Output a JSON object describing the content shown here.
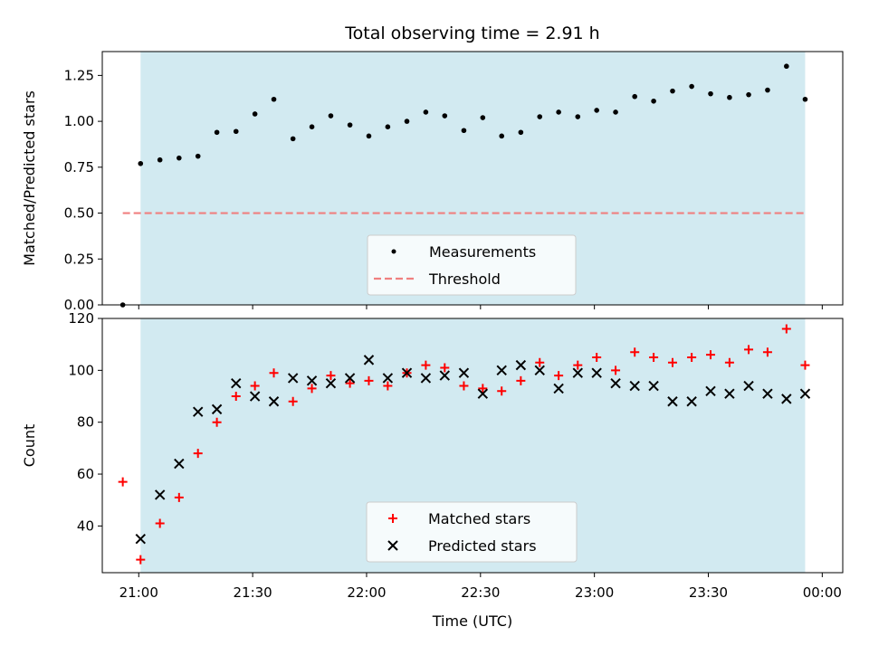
{
  "chart_data": [
    {
      "type": "scatter",
      "title": "Total observing time = 2.91 h",
      "xlabel": "",
      "ylabel": "Matched/Predicted stars",
      "ylim": [
        0,
        1.38
      ],
      "yticks": [
        "0.00",
        "0.25",
        "0.50",
        "0.75",
        "1.00",
        "1.25"
      ],
      "ytick_values": [
        0,
        0.25,
        0.5,
        0.75,
        1.0,
        1.25
      ],
      "xlim": [
        20.84,
        24.09
      ],
      "x_units": "hours UTC",
      "shaded_span": [
        21.008,
        23.925
      ],
      "shade_color": "#add8e6",
      "legend_position": "lower-center",
      "series": [
        {
          "name": "Measurements",
          "marker": "dot",
          "color": "#000000",
          "x": [
            20.93,
            21.008,
            21.093,
            21.177,
            21.26,
            21.343,
            21.427,
            21.51,
            21.593,
            21.677,
            21.76,
            21.843,
            21.927,
            22.01,
            22.093,
            22.177,
            22.26,
            22.343,
            22.427,
            22.51,
            22.593,
            22.677,
            22.76,
            22.843,
            22.927,
            23.01,
            23.093,
            23.177,
            23.26,
            23.343,
            23.427,
            23.51,
            23.593,
            23.677,
            23.76,
            23.843,
            23.925
          ],
          "y": [
            0.0,
            0.77,
            0.79,
            0.8,
            0.81,
            0.94,
            0.945,
            1.04,
            1.12,
            0.905,
            0.97,
            1.03,
            0.98,
            0.92,
            0.97,
            1.0,
            1.05,
            1.03,
            0.95,
            1.02,
            0.92,
            0.94,
            1.025,
            1.05,
            1.025,
            1.06,
            1.05,
            1.135,
            1.11,
            1.165,
            1.19,
            1.15,
            1.13,
            1.145,
            1.17,
            1.3,
            1.12
          ]
        },
        {
          "name": "Threshold",
          "marker": "dashed-line",
          "color": "#f08080",
          "x": [
            20.93,
            23.925
          ],
          "y": [
            0.5,
            0.5
          ]
        }
      ]
    },
    {
      "type": "scatter",
      "title": "",
      "xlabel": "Time (UTC)",
      "ylabel": "Count",
      "ylim": [
        22,
        120
      ],
      "yticks": [
        "40",
        "60",
        "80",
        "100",
        "120"
      ],
      "ytick_values": [
        40,
        60,
        80,
        100,
        120
      ],
      "xlim": [
        20.84,
        24.09
      ],
      "x_units": "hours UTC",
      "xticks": [
        "21:00",
        "21:30",
        "22:00",
        "22:30",
        "23:00",
        "23:30",
        "00:00"
      ],
      "xtick_values": [
        21.0,
        21.5,
        22.0,
        22.5,
        23.0,
        23.5,
        24.0
      ],
      "shaded_span": [
        21.008,
        23.925
      ],
      "shade_color": "#add8e6",
      "legend_position": "lower-center",
      "series": [
        {
          "name": "Matched stars",
          "marker": "plus",
          "color": "#ff0000",
          "x": [
            20.93,
            21.008,
            21.093,
            21.177,
            21.26,
            21.343,
            21.427,
            21.51,
            21.593,
            21.677,
            21.76,
            21.843,
            21.927,
            22.01,
            22.093,
            22.177,
            22.26,
            22.343,
            22.427,
            22.51,
            22.593,
            22.677,
            22.76,
            22.843,
            22.927,
            23.01,
            23.093,
            23.177,
            23.26,
            23.343,
            23.427,
            23.51,
            23.593,
            23.677,
            23.76,
            23.843,
            23.925
          ],
          "y": [
            57,
            27,
            41,
            51,
            68,
            80,
            90,
            94,
            99,
            88,
            93,
            98,
            95,
            96,
            94,
            99,
            102,
            101,
            94,
            93,
            92,
            96,
            103,
            98,
            102,
            105,
            100,
            107,
            105,
            103,
            105,
            106,
            103,
            108,
            107,
            116,
            102
          ]
        },
        {
          "name": "Predicted stars",
          "marker": "cross",
          "color": "#000000",
          "x": [
            21.008,
            21.093,
            21.177,
            21.26,
            21.343,
            21.427,
            21.51,
            21.593,
            21.677,
            21.76,
            21.843,
            21.927,
            22.01,
            22.093,
            22.177,
            22.26,
            22.343,
            22.427,
            22.51,
            22.593,
            22.677,
            22.76,
            22.843,
            22.927,
            23.01,
            23.093,
            23.177,
            23.26,
            23.343,
            23.427,
            23.51,
            23.593,
            23.677,
            23.76,
            23.843,
            23.925
          ],
          "y": [
            35,
            52,
            64,
            84,
            85,
            95,
            90,
            88,
            97,
            96,
            95,
            97,
            104,
            97,
            99,
            97,
            98,
            99,
            91,
            100,
            102,
            100,
            93,
            99,
            99,
            95,
            94,
            94,
            88,
            88,
            92,
            91,
            94,
            91,
            89,
            91
          ]
        }
      ]
    }
  ]
}
